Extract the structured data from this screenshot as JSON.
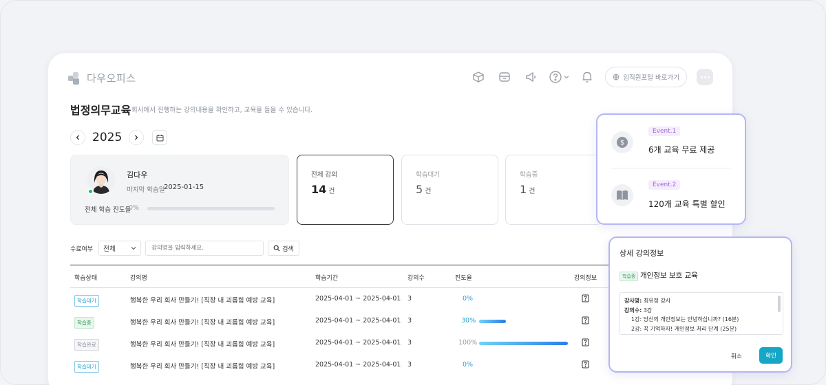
{
  "brand": {
    "name": "다우오피스"
  },
  "header": {
    "portal_button": "임직원포털 바로가기"
  },
  "page": {
    "title": "법정의무교육",
    "subtitle": "회사에서 진행하는 강의내용을 확인하고, 교육을 들을 수 있습니다.",
    "year": "2025"
  },
  "profile": {
    "name": "김다우",
    "last_label": "마지막 학습일",
    "last_date": "2025-01-15",
    "progress_label": "전체 학습 진도율",
    "progress_text": "0%",
    "progress_value": 0
  },
  "stats": [
    {
      "label": "전체 강의",
      "value": "14",
      "unit": "건"
    },
    {
      "label": "학습대기",
      "value": "5",
      "unit": "건"
    },
    {
      "label": "학습중",
      "value": "1",
      "unit": "건"
    }
  ],
  "filter": {
    "label": "수료여부",
    "select_value": "전체",
    "input_placeholder": "강의명을 입력하세요.",
    "search_label": "검색"
  },
  "table": {
    "headers": [
      "학습상태",
      "강의명",
      "학습기간",
      "강의수",
      "진도율",
      "강의정보"
    ],
    "rows": [
      {
        "status": "학습대기",
        "title": "행복한 우리 회사 만들기! [직장 내 괴롭힘 예방 교육]",
        "period": "2025-04-01 ~ 2025-04-01",
        "count": "3",
        "progress": "0%",
        "progress_value": 0
      },
      {
        "status": "학습중",
        "title": "행복한 우리 회사 만들기! [직장 내 괴롭힘 예방 교육]",
        "period": "2025-04-01 ~ 2025-04-01",
        "count": "3",
        "progress": "30%",
        "progress_value": 30
      },
      {
        "status": "학습완료",
        "title": "행복한 우리 회사 만들기! [직장 내 괴롭힘 예방 교육]",
        "period": "2025-04-01 ~ 2025-04-01",
        "count": "3",
        "progress": "100%",
        "progress_value": 100
      },
      {
        "status": "학습대기",
        "title": "행복한 우리 회사 만들기! [직장 내 괴롭힘 예방 교육]",
        "period": "2025-04-01 ~ 2025-04-01",
        "count": "3",
        "progress": "0%",
        "progress_value": 0
      }
    ]
  },
  "events": [
    {
      "tag": "Event.1",
      "text": "6개 교육 무료 제공"
    },
    {
      "tag": "Event.2",
      "text": "120개 교육 특별 할인"
    }
  ],
  "detail": {
    "title": "상세 강의정보",
    "badge": "학습중",
    "course": "개인정보 보호 교육",
    "instructor_label": "강사명:",
    "instructor_value": "최유정 강사",
    "lectures_label": "강의수:",
    "lectures_value": "3강",
    "lecture_1": "1강: 당신의 개인정보는 안녕하십니까? (16분)",
    "lecture_2": "2강: 꼭 기억하자! 개인정보 처리 단계 (25분)",
    "cancel": "취소",
    "confirm": "확인"
  },
  "colors": {
    "accent": "#16a6c6",
    "waiting": "#2a9fd6",
    "in_progress": "#2e9b56",
    "done": "#8a9099",
    "popup_border": "#b3b6f4"
  }
}
